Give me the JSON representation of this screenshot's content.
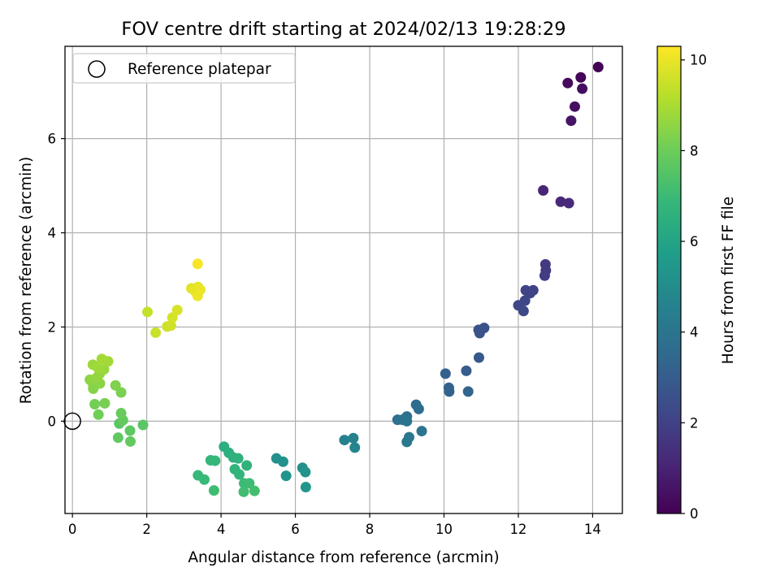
{
  "chart_data": {
    "type": "scatter",
    "title": "FOV centre drift starting at 2024/02/13 19:28:29",
    "xlabel": "Angular distance from reference (arcmin)",
    "ylabel": "Rotation from reference (arcmin)",
    "xlim": [
      -0.2,
      14.8
    ],
    "ylim": [
      -1.96,
      7.96
    ],
    "x_ticks": [
      0,
      2,
      4,
      6,
      8,
      10,
      12,
      14
    ],
    "y_ticks": [
      0,
      2,
      4,
      6
    ],
    "grid": true,
    "colormap": "viridis",
    "colorbar": {
      "label": "Hours from first FF file",
      "range": [
        0,
        10.3
      ],
      "ticks": [
        0,
        2,
        4,
        6,
        8,
        10
      ]
    },
    "legend": {
      "placement": "top-left",
      "entries": [
        {
          "label": "Reference platepar",
          "marker": "open-circle"
        }
      ]
    },
    "reference_point": {
      "x": 0,
      "y": 0
    },
    "points": [
      {
        "x": 14.15,
        "y": 7.52,
        "h": 0.05
      },
      {
        "x": 13.68,
        "y": 7.3,
        "h": 0.15
      },
      {
        "x": 13.33,
        "y": 7.18,
        "h": 0.25
      },
      {
        "x": 13.72,
        "y": 7.06,
        "h": 0.35
      },
      {
        "x": 13.52,
        "y": 6.68,
        "h": 0.45
      },
      {
        "x": 13.42,
        "y": 6.38,
        "h": 0.55
      },
      {
        "x": 12.67,
        "y": 4.9,
        "h": 1.05
      },
      {
        "x": 13.14,
        "y": 4.66,
        "h": 1.15
      },
      {
        "x": 13.36,
        "y": 4.63,
        "h": 1.25
      },
      {
        "x": 12.73,
        "y": 3.33,
        "h": 1.75
      },
      {
        "x": 12.74,
        "y": 3.2,
        "h": 1.8
      },
      {
        "x": 12.71,
        "y": 3.09,
        "h": 1.85
      },
      {
        "x": 12.4,
        "y": 2.78,
        "h": 2.0
      },
      {
        "x": 12.2,
        "y": 2.78,
        "h": 2.05
      },
      {
        "x": 12.32,
        "y": 2.72,
        "h": 2.1
      },
      {
        "x": 12.18,
        "y": 2.56,
        "h": 2.15
      },
      {
        "x": 12.0,
        "y": 2.46,
        "h": 2.2
      },
      {
        "x": 12.14,
        "y": 2.34,
        "h": 2.25
      },
      {
        "x": 11.08,
        "y": 1.98,
        "h": 2.55
      },
      {
        "x": 10.93,
        "y": 1.94,
        "h": 2.6
      },
      {
        "x": 10.96,
        "y": 1.87,
        "h": 2.65
      },
      {
        "x": 10.94,
        "y": 1.35,
        "h": 2.85
      },
      {
        "x": 10.6,
        "y": 1.07,
        "h": 3.0
      },
      {
        "x": 10.04,
        "y": 1.01,
        "h": 3.1
      },
      {
        "x": 10.13,
        "y": 0.71,
        "h": 3.2
      },
      {
        "x": 10.14,
        "y": 0.63,
        "h": 3.25
      },
      {
        "x": 10.65,
        "y": 0.63,
        "h": 3.3
      },
      {
        "x": 9.25,
        "y": 0.35,
        "h": 3.6
      },
      {
        "x": 9.32,
        "y": 0.26,
        "h": 3.65
      },
      {
        "x": 9.0,
        "y": 0.1,
        "h": 3.75
      },
      {
        "x": 8.75,
        "y": 0.03,
        "h": 3.85
      },
      {
        "x": 8.88,
        "y": 0.03,
        "h": 3.9
      },
      {
        "x": 9.0,
        "y": 0.0,
        "h": 3.95
      },
      {
        "x": 9.4,
        "y": -0.21,
        "h": 4.05
      },
      {
        "x": 9.06,
        "y": -0.34,
        "h": 4.1
      },
      {
        "x": 9.0,
        "y": -0.44,
        "h": 4.15
      },
      {
        "x": 7.32,
        "y": -0.4,
        "h": 4.55
      },
      {
        "x": 7.56,
        "y": -0.36,
        "h": 4.6
      },
      {
        "x": 7.6,
        "y": -0.56,
        "h": 4.65
      },
      {
        "x": 5.49,
        "y": -0.79,
        "h": 5.2
      },
      {
        "x": 5.67,
        "y": -0.86,
        "h": 5.25
      },
      {
        "x": 6.19,
        "y": -0.99,
        "h": 5.15
      },
      {
        "x": 6.27,
        "y": -1.08,
        "h": 5.3
      },
      {
        "x": 5.75,
        "y": -1.16,
        "h": 5.35
      },
      {
        "x": 6.28,
        "y": -1.4,
        "h": 5.4
      },
      {
        "x": 4.08,
        "y": -0.54,
        "h": 6.45
      },
      {
        "x": 4.21,
        "y": -0.67,
        "h": 6.5
      },
      {
        "x": 4.33,
        "y": -0.77,
        "h": 6.55
      },
      {
        "x": 4.46,
        "y": -0.79,
        "h": 6.6
      },
      {
        "x": 4.69,
        "y": -0.94,
        "h": 6.65
      },
      {
        "x": 4.37,
        "y": -1.02,
        "h": 6.7
      },
      {
        "x": 4.49,
        "y": -1.13,
        "h": 6.75
      },
      {
        "x": 3.72,
        "y": -0.83,
        "h": 6.8
      },
      {
        "x": 3.84,
        "y": -0.84,
        "h": 6.85
      },
      {
        "x": 3.38,
        "y": -1.15,
        "h": 6.9
      },
      {
        "x": 3.55,
        "y": -1.24,
        "h": 6.95
      },
      {
        "x": 4.62,
        "y": -1.32,
        "h": 7.0
      },
      {
        "x": 4.76,
        "y": -1.32,
        "h": 7.05
      },
      {
        "x": 3.81,
        "y": -1.47,
        "h": 7.1
      },
      {
        "x": 4.61,
        "y": -1.5,
        "h": 7.15
      },
      {
        "x": 4.9,
        "y": -1.48,
        "h": 7.2
      },
      {
        "x": 1.26,
        "y": -0.05,
        "h": 7.6
      },
      {
        "x": 1.9,
        "y": -0.08,
        "h": 7.65
      },
      {
        "x": 1.55,
        "y": -0.2,
        "h": 7.7
      },
      {
        "x": 1.23,
        "y": -0.35,
        "h": 7.75
      },
      {
        "x": 1.56,
        "y": -0.43,
        "h": 7.8
      },
      {
        "x": 1.36,
        "y": 0.02,
        "h": 7.85
      },
      {
        "x": 1.31,
        "y": 0.17,
        "h": 7.9
      },
      {
        "x": 0.7,
        "y": 0.14,
        "h": 8.05
      },
      {
        "x": 0.6,
        "y": 0.36,
        "h": 8.1
      },
      {
        "x": 0.87,
        "y": 0.38,
        "h": 8.15
      },
      {
        "x": 1.31,
        "y": 0.61,
        "h": 8.2
      },
      {
        "x": 1.16,
        "y": 0.76,
        "h": 8.3
      },
      {
        "x": 0.56,
        "y": 0.69,
        "h": 8.4
      },
      {
        "x": 0.56,
        "y": 0.77,
        "h": 8.45
      },
      {
        "x": 0.74,
        "y": 0.8,
        "h": 8.5
      },
      {
        "x": 0.47,
        "y": 0.88,
        "h": 8.55
      },
      {
        "x": 0.66,
        "y": 0.93,
        "h": 8.6
      },
      {
        "x": 0.73,
        "y": 1.0,
        "h": 8.65
      },
      {
        "x": 0.85,
        "y": 1.1,
        "h": 8.7
      },
      {
        "x": 0.55,
        "y": 1.2,
        "h": 8.75
      },
      {
        "x": 0.69,
        "y": 1.13,
        "h": 8.8
      },
      {
        "x": 0.96,
        "y": 1.27,
        "h": 8.85
      },
      {
        "x": 0.79,
        "y": 1.32,
        "h": 8.9
      },
      {
        "x": 2.02,
        "y": 2.32,
        "h": 9.4
      },
      {
        "x": 2.24,
        "y": 1.88,
        "h": 9.5
      },
      {
        "x": 2.55,
        "y": 2.01,
        "h": 9.55
      },
      {
        "x": 2.65,
        "y": 2.03,
        "h": 9.6
      },
      {
        "x": 2.69,
        "y": 2.2,
        "h": 9.65
      },
      {
        "x": 2.82,
        "y": 2.36,
        "h": 9.7
      },
      {
        "x": 3.2,
        "y": 2.82,
        "h": 9.85
      },
      {
        "x": 3.38,
        "y": 2.85,
        "h": 9.9
      },
      {
        "x": 3.29,
        "y": 2.77,
        "h": 9.95
      },
      {
        "x": 3.44,
        "y": 2.79,
        "h": 10.0
      },
      {
        "x": 3.37,
        "y": 2.66,
        "h": 10.05
      },
      {
        "x": 3.37,
        "y": 3.34,
        "h": 10.2
      }
    ]
  }
}
